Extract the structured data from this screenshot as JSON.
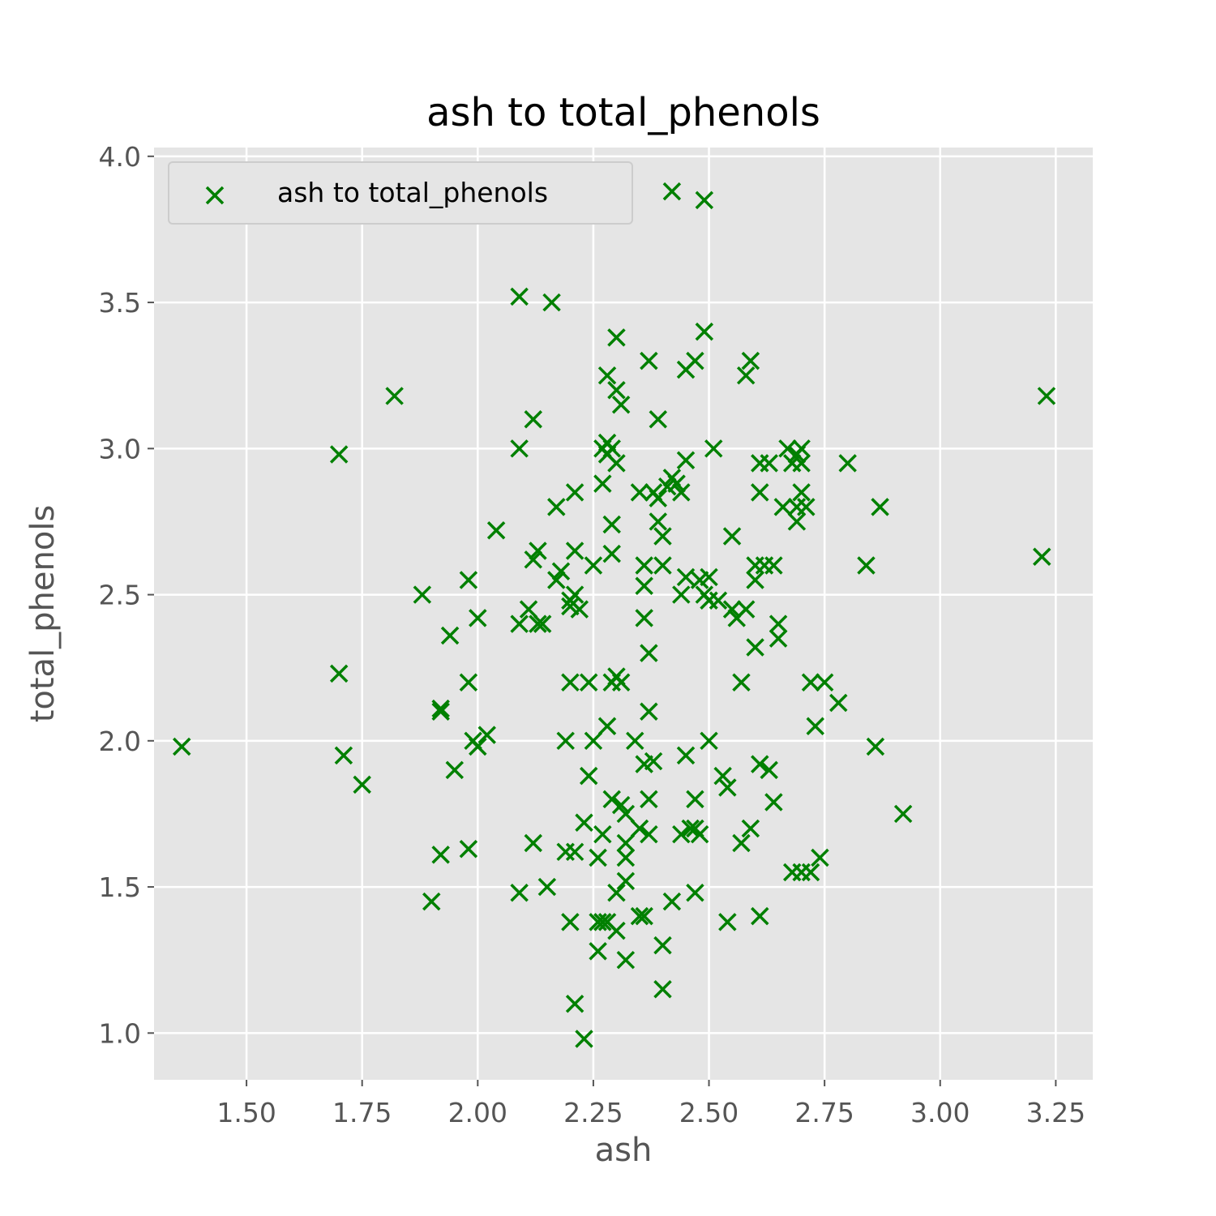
{
  "colors": {
    "background": "#ffffff",
    "plot_background": "#e5e5e5",
    "grid": "#ffffff",
    "marker": "#008000",
    "tick_text": "#555555",
    "legend_bg": "#e5e5e5",
    "legend_border": "#cccccc"
  },
  "chart_data": {
    "type": "scatter",
    "title": "ash to total_phenols",
    "xlabel": "ash",
    "ylabel": "total_phenols",
    "xlim": [
      1.3,
      3.33
    ],
    "ylim": [
      0.84,
      4.03
    ],
    "xticks": [
      1.5,
      1.75,
      2.0,
      2.25,
      2.5,
      2.75,
      3.0,
      3.25
    ],
    "xtick_labels": [
      "1.50",
      "1.75",
      "2.00",
      "2.25",
      "2.50",
      "2.75",
      "3.00",
      "3.25"
    ],
    "yticks": [
      1.0,
      1.5,
      2.0,
      2.5,
      3.0,
      3.5,
      4.0
    ],
    "ytick_labels": [
      "1.0",
      "1.5",
      "2.0",
      "2.5",
      "3.0",
      "3.5",
      "4.0"
    ],
    "grid": true,
    "legend_position": "upper-left",
    "marker": "x",
    "series": [
      {
        "name": "ash to total_phenols",
        "points": [
          [
            1.36,
            1.98
          ],
          [
            1.7,
            2.98
          ],
          [
            1.7,
            2.23
          ],
          [
            1.71,
            1.95
          ],
          [
            1.75,
            1.85
          ],
          [
            1.82,
            3.18
          ],
          [
            1.88,
            2.5
          ],
          [
            1.9,
            1.45
          ],
          [
            1.92,
            1.61
          ],
          [
            1.92,
            2.11
          ],
          [
            1.92,
            2.1
          ],
          [
            1.94,
            2.36
          ],
          [
            1.95,
            1.9
          ],
          [
            1.98,
            2.55
          ],
          [
            1.98,
            2.2
          ],
          [
            1.98,
            1.63
          ],
          [
            1.99,
            2.0
          ],
          [
            2.0,
            2.42
          ],
          [
            2.0,
            1.98
          ],
          [
            2.02,
            2.02
          ],
          [
            2.04,
            2.72
          ],
          [
            2.09,
            3.52
          ],
          [
            2.09,
            3.0
          ],
          [
            2.09,
            2.4
          ],
          [
            2.09,
            1.48
          ],
          [
            2.11,
            2.45
          ],
          [
            2.12,
            3.1
          ],
          [
            2.12,
            2.62
          ],
          [
            2.12,
            1.65
          ],
          [
            2.13,
            2.4
          ],
          [
            2.13,
            2.65
          ],
          [
            2.14,
            2.4
          ],
          [
            2.15,
            1.5
          ],
          [
            2.16,
            3.5
          ],
          [
            2.17,
            2.8
          ],
          [
            2.17,
            2.55
          ],
          [
            2.18,
            2.58
          ],
          [
            2.19,
            2.0
          ],
          [
            2.19,
            1.62
          ],
          [
            2.2,
            2.48
          ],
          [
            2.2,
            2.46
          ],
          [
            2.2,
            2.2
          ],
          [
            2.2,
            1.38
          ],
          [
            2.21,
            2.85
          ],
          [
            2.21,
            2.65
          ],
          [
            2.21,
            2.5
          ],
          [
            2.21,
            1.62
          ],
          [
            2.21,
            1.1
          ],
          [
            2.22,
            2.45
          ],
          [
            2.23,
            1.72
          ],
          [
            2.23,
            0.98
          ],
          [
            2.24,
            2.2
          ],
          [
            2.24,
            1.88
          ],
          [
            2.25,
            2.6
          ],
          [
            2.25,
            2.0
          ],
          [
            2.26,
            1.6
          ],
          [
            2.26,
            1.28
          ],
          [
            2.26,
            1.38
          ],
          [
            2.27,
            3.0
          ],
          [
            2.27,
            2.88
          ],
          [
            2.27,
            1.68
          ],
          [
            2.27,
            1.38
          ],
          [
            2.28,
            3.25
          ],
          [
            2.28,
            3.02
          ],
          [
            2.28,
            2.98
          ],
          [
            2.28,
            2.05
          ],
          [
            2.28,
            1.38
          ],
          [
            2.29,
            3.0
          ],
          [
            2.29,
            2.74
          ],
          [
            2.29,
            2.64
          ],
          [
            2.29,
            2.2
          ],
          [
            2.29,
            1.8
          ],
          [
            2.3,
            3.38
          ],
          [
            2.3,
            3.2
          ],
          [
            2.3,
            2.95
          ],
          [
            2.3,
            2.22
          ],
          [
            2.3,
            1.48
          ],
          [
            2.3,
            1.35
          ],
          [
            2.31,
            3.15
          ],
          [
            2.31,
            2.2
          ],
          [
            2.31,
            1.78
          ],
          [
            2.32,
            1.65
          ],
          [
            2.32,
            1.75
          ],
          [
            2.32,
            1.6
          ],
          [
            2.32,
            1.52
          ],
          [
            2.32,
            1.25
          ],
          [
            2.34,
            2.0
          ],
          [
            2.35,
            1.7
          ],
          [
            2.35,
            1.4
          ],
          [
            2.35,
            2.85
          ],
          [
            2.36,
            2.6
          ],
          [
            2.36,
            2.53
          ],
          [
            2.36,
            2.42
          ],
          [
            2.36,
            1.92
          ],
          [
            2.36,
            1.4
          ],
          [
            2.37,
            3.3
          ],
          [
            2.37,
            2.3
          ],
          [
            2.37,
            2.1
          ],
          [
            2.37,
            1.8
          ],
          [
            2.37,
            1.68
          ],
          [
            2.38,
            2.85
          ],
          [
            2.38,
            1.93
          ],
          [
            2.39,
            3.1
          ],
          [
            2.39,
            2.83
          ],
          [
            2.39,
            2.75
          ],
          [
            2.4,
            2.7
          ],
          [
            2.4,
            2.6
          ],
          [
            2.4,
            1.3
          ],
          [
            2.4,
            1.15
          ],
          [
            2.41,
            2.87
          ],
          [
            2.42,
            3.88
          ],
          [
            2.42,
            2.9
          ],
          [
            2.42,
            1.45
          ],
          [
            2.43,
            2.88
          ],
          [
            2.44,
            2.85
          ],
          [
            2.44,
            1.68
          ],
          [
            2.44,
            2.5
          ],
          [
            2.45,
            3.27
          ],
          [
            2.45,
            2.96
          ],
          [
            2.45,
            2.56
          ],
          [
            2.45,
            1.95
          ],
          [
            2.46,
            1.7
          ],
          [
            2.47,
            3.3
          ],
          [
            2.47,
            1.7
          ],
          [
            2.47,
            1.8
          ],
          [
            2.47,
            1.48
          ],
          [
            2.48,
            2.55
          ],
          [
            2.48,
            1.68
          ],
          [
            2.49,
            3.85
          ],
          [
            2.49,
            3.4
          ],
          [
            2.49,
            2.5
          ],
          [
            2.5,
            2.56
          ],
          [
            2.5,
            2.48
          ],
          [
            2.5,
            2.0
          ],
          [
            2.51,
            3.0
          ],
          [
            2.52,
            2.48
          ],
          [
            2.53,
            1.88
          ],
          [
            2.54,
            1.84
          ],
          [
            2.54,
            1.38
          ],
          [
            2.55,
            2.45
          ],
          [
            2.55,
            2.7
          ],
          [
            2.56,
            2.42
          ],
          [
            2.57,
            2.2
          ],
          [
            2.57,
            1.65
          ],
          [
            2.58,
            3.25
          ],
          [
            2.58,
            2.45
          ],
          [
            2.59,
            3.3
          ],
          [
            2.59,
            1.7
          ],
          [
            2.6,
            2.6
          ],
          [
            2.6,
            2.55
          ],
          [
            2.6,
            2.32
          ],
          [
            2.61,
            2.95
          ],
          [
            2.61,
            2.85
          ],
          [
            2.61,
            1.92
          ],
          [
            2.61,
            1.4
          ],
          [
            2.62,
            2.6
          ],
          [
            2.63,
            2.95
          ],
          [
            2.63,
            1.9
          ],
          [
            2.64,
            1.79
          ],
          [
            2.64,
            2.6
          ],
          [
            2.65,
            2.4
          ],
          [
            2.65,
            2.35
          ],
          [
            2.66,
            2.8
          ],
          [
            2.67,
            3.0
          ],
          [
            2.68,
            2.95
          ],
          [
            2.68,
            1.55
          ],
          [
            2.69,
            2.98
          ],
          [
            2.69,
            2.8
          ],
          [
            2.69,
            2.75
          ],
          [
            2.7,
            3.0
          ],
          [
            2.7,
            2.95
          ],
          [
            2.7,
            2.85
          ],
          [
            2.7,
            1.55
          ],
          [
            2.71,
            2.8
          ],
          [
            2.72,
            2.2
          ],
          [
            2.72,
            1.55
          ],
          [
            2.73,
            2.05
          ],
          [
            2.74,
            1.6
          ],
          [
            2.75,
            2.2
          ],
          [
            2.78,
            2.13
          ],
          [
            2.8,
            2.95
          ],
          [
            2.84,
            2.6
          ],
          [
            2.86,
            1.98
          ],
          [
            2.87,
            2.8
          ],
          [
            2.92,
            1.75
          ],
          [
            3.22,
            2.63
          ],
          [
            3.23,
            3.18
          ]
        ]
      }
    ]
  }
}
